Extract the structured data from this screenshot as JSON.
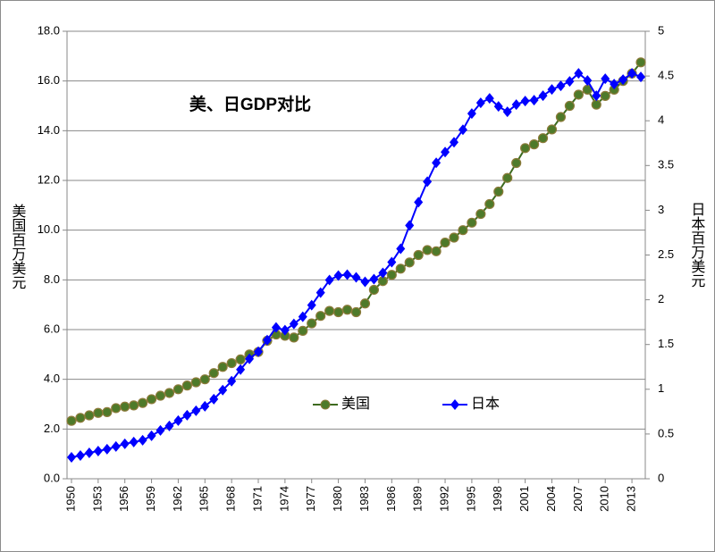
{
  "chart_data": {
    "type": "line",
    "title": "美、日GDP对比",
    "y_label": "美国百万美元",
    "y2_label": "日本百万美元",
    "x": [
      1950,
      1951,
      1952,
      1953,
      1954,
      1955,
      1956,
      1957,
      1958,
      1959,
      1960,
      1961,
      1962,
      1963,
      1964,
      1965,
      1966,
      1967,
      1968,
      1969,
      1970,
      1971,
      1972,
      1973,
      1974,
      1975,
      1976,
      1977,
      1978,
      1979,
      1980,
      1981,
      1982,
      1983,
      1984,
      1985,
      1986,
      1987,
      1988,
      1989,
      1990,
      1991,
      1992,
      1993,
      1994,
      1995,
      1996,
      1997,
      1998,
      1999,
      2000,
      2001,
      2002,
      2003,
      2004,
      2005,
      2006,
      2007,
      2008,
      2009,
      2010,
      2011,
      2012,
      2013,
      2014
    ],
    "xlim": [
      1949.5,
      2014.5
    ],
    "xticks": [
      1950,
      1953,
      1956,
      1959,
      1962,
      1965,
      1968,
      1971,
      1974,
      1977,
      1980,
      1983,
      1986,
      1989,
      1992,
      1995,
      1998,
      2001,
      2004,
      2007,
      2010,
      2013
    ],
    "ylim": [
      0,
      18
    ],
    "yticks": [
      {
        "value": 0,
        "label": "0.0"
      },
      {
        "value": 2,
        "label": "2.0"
      },
      {
        "value": 4,
        "label": "4.0"
      },
      {
        "value": 6,
        "label": "6.0"
      },
      {
        "value": 8,
        "label": "8.0"
      },
      {
        "value": 10,
        "label": "10.0"
      },
      {
        "value": 12,
        "label": "12.0"
      },
      {
        "value": 14,
        "label": "14.0"
      },
      {
        "value": 16,
        "label": "16.0"
      },
      {
        "value": 18,
        "label": "18.0"
      }
    ],
    "y2lim": [
      0,
      5
    ],
    "y2ticks": [
      0,
      0.5,
      1,
      1.5,
      2,
      2.5,
      3,
      3.5,
      4,
      4.5,
      5
    ],
    "grid": true,
    "legend": "bottom-center",
    "series": [
      {
        "name": "美国",
        "color": "#3d6b1f",
        "marker": "circle",
        "values": [
          2.33,
          2.45,
          2.55,
          2.65,
          2.68,
          2.84,
          2.9,
          2.95,
          3.05,
          3.2,
          3.34,
          3.45,
          3.6,
          3.75,
          3.88,
          4.0,
          4.25,
          4.5,
          4.65,
          4.8,
          5.0,
          5.1,
          5.55,
          5.8,
          5.75,
          5.68,
          5.95,
          6.25,
          6.55,
          6.75,
          6.7,
          6.8,
          6.7,
          7.05,
          7.6,
          7.95,
          8.2,
          8.45,
          8.7,
          9.0,
          9.2,
          9.15,
          9.5,
          9.7,
          10.0,
          10.3,
          10.65,
          11.05,
          11.55,
          12.1,
          12.7,
          13.3,
          13.45,
          13.7,
          14.05,
          14.55,
          15.0,
          15.45,
          15.65,
          15.05,
          15.4,
          15.65,
          16.0,
          16.3,
          16.75
        ]
      },
      {
        "name": "日本",
        "color": "#0000ff",
        "marker": "diamond",
        "axis": "y2",
        "values": [
          0.24,
          0.26,
          0.29,
          0.31,
          0.33,
          0.36,
          0.39,
          0.41,
          0.43,
          0.48,
          0.54,
          0.59,
          0.65,
          0.71,
          0.76,
          0.81,
          0.89,
          0.99,
          1.09,
          1.22,
          1.34,
          1.42,
          1.55,
          1.69,
          1.66,
          1.73,
          1.81,
          1.94,
          2.08,
          2.22,
          2.27,
          2.28,
          2.25,
          2.2,
          2.23,
          2.3,
          2.42,
          2.57,
          2.83,
          3.09,
          3.32,
          3.53,
          3.65,
          3.76,
          3.9,
          4.08,
          4.2,
          4.25,
          4.16,
          4.1,
          4.18,
          4.22,
          4.23,
          4.28,
          4.35,
          4.39,
          4.44,
          4.53,
          4.45,
          4.28,
          4.47,
          4.41,
          4.46,
          4.53,
          4.49
        ]
      }
    ]
  }
}
